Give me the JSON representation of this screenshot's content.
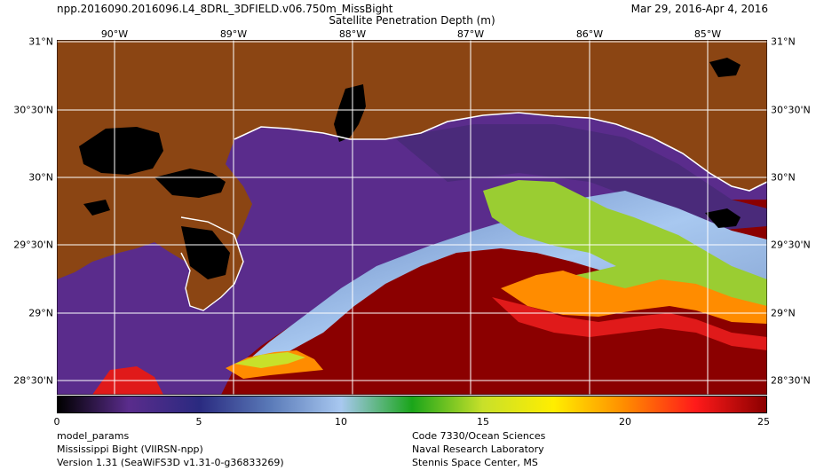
{
  "header": {
    "filename": "npp.2016090.2016096.L4_8DRL_3DFIELD.v06.750m_MissBight",
    "date_range": "Mar 29, 2016-Apr  4, 2016",
    "product_title": "Satellite Penetration Depth (m)"
  },
  "map": {
    "lon_labels": [
      "90°W",
      "89°W",
      "88°W",
      "87°W",
      "86°W",
      "85°W"
    ],
    "lat_labels": [
      "31°N",
      "30°30'N",
      "30°N",
      "29°30'N",
      "29°N",
      "28°30'N"
    ],
    "colors": {
      "land": "#8b4513",
      "nodata": "#000000",
      "coast": "#ffffff",
      "gridlines": "#ffffff"
    }
  },
  "colorbar": {
    "min": 0,
    "max": 25,
    "tick_labels": [
      "0",
      "5",
      "10",
      "15",
      "20",
      "25"
    ],
    "colors": [
      "#000000",
      "#5a2c8c",
      "#2a2a80",
      "#5a7ab8",
      "#a8c8f0",
      "#1aa51a",
      "#c8e02a",
      "#ffee00",
      "#ff8c00",
      "#ff1a1a",
      "#8b0000"
    ]
  },
  "footer": {
    "left": [
      "model_params",
      "Mississippi Bight (VIIRSN-npp)",
      "Version 1.31 (SeaWiFS3D v1.31-0-g36833269)"
    ],
    "right": [
      "Code 7330/Ocean Sciences",
      "Naval Research Laboratory",
      "Stennis Space Center, MS"
    ]
  }
}
